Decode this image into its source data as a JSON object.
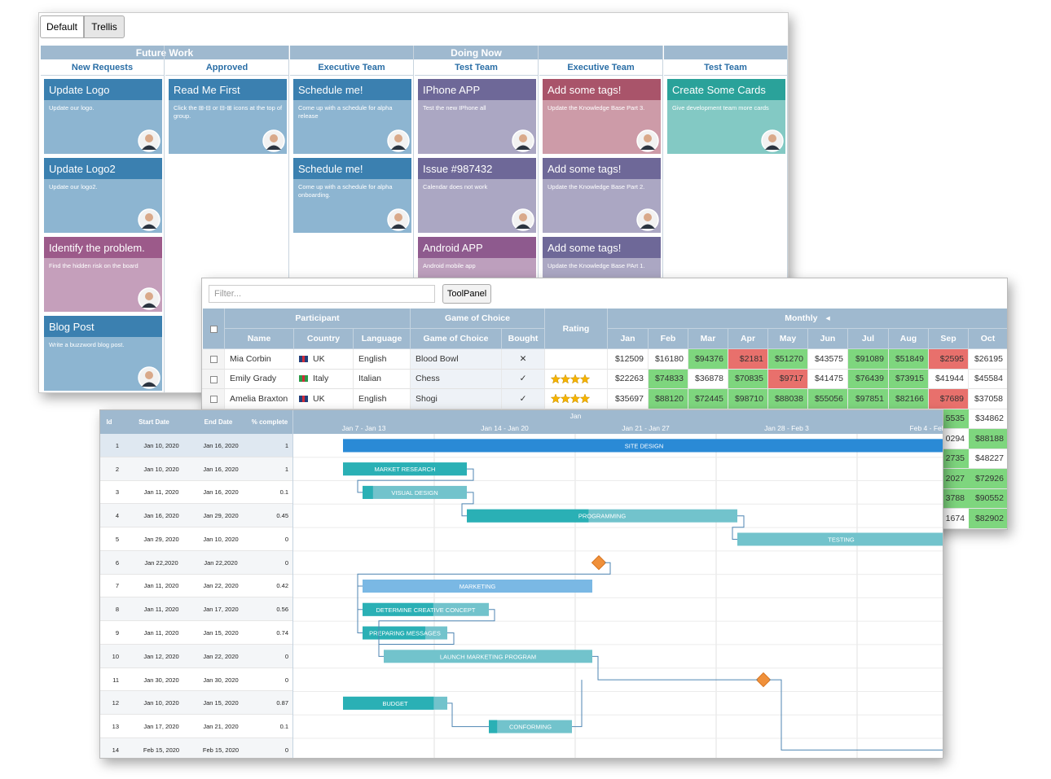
{
  "kanban": {
    "buttons": [
      "Default",
      "Trellis"
    ],
    "groups": [
      {
        "name": "Future Work",
        "columns": [
          {
            "name": "New Requests",
            "cards": [
              {
                "title": "Update Logo",
                "text": "Update our logo.",
                "color": "#3b80b0"
              },
              {
                "title": "Update Logo2",
                "text": "Update our logo2.",
                "color": "#3b80b0"
              },
              {
                "title": "Identify the problem.",
                "text": "Find the hidden risk on the board",
                "color": "#9c5a8a"
              },
              {
                "title": "Blog Post",
                "text": "Write a buzzword blog post.",
                "color": "#3b80b0"
              }
            ]
          },
          {
            "name": "Approved",
            "cards": [
              {
                "title": "Read Me First",
                "text": "Click the ⊞-⊟ or ⊟-⊞ icons at the top of group.",
                "color": "#3b80b0"
              }
            ]
          }
        ]
      },
      {
        "name": "Doing Now",
        "columns": [
          {
            "name": "Executive Team",
            "cards": [
              {
                "title": "Schedule me!",
                "text": "Come up with a schedule for alpha release",
                "color": "#3b80b0"
              },
              {
                "title": "Schedule me!",
                "text": "Come up with a schedule for alpha onboarding.",
                "color": "#3b80b0"
              }
            ]
          },
          {
            "name": "Test Team",
            "cards": [
              {
                "title": "IPhone APP",
                "text": "Test the new IPhone all",
                "color": "#6e6898"
              },
              {
                "title": "Issue #987432",
                "text": "Calendar does not work",
                "color": "#6e6898"
              },
              {
                "title": "Android APP",
                "text": "Android mobile app",
                "color": "#8e5a8e"
              }
            ]
          },
          {
            "name": "Executive Team",
            "cards": [
              {
                "title": "Add some tags!",
                "text": "Update the Knowledge Base Part 3.",
                "color": "#a9546a"
              },
              {
                "title": "Add some tags!",
                "text": "Update the Knowledge Base Part 2.",
                "color": "#6e6898"
              },
              {
                "title": "Add some tags!",
                "text": "Update the Knowledge Base PArt 1.",
                "color": "#6e6898"
              }
            ]
          }
        ]
      },
      {
        "columns": [
          {
            "name": "Test Team",
            "cards": [
              {
                "title": "Create Some Cards",
                "text": "Give development team more cards",
                "color": "#2aa29a"
              }
            ]
          }
        ]
      }
    ]
  },
  "grid": {
    "filter_placeholder": "Filter...",
    "button": "ToolPanel",
    "column_groups": [
      {
        "name": "Participant",
        "columns": [
          "Name",
          "Country",
          "Language"
        ]
      },
      {
        "name": "Game of Choice",
        "columns": [
          "Game of Choice",
          "Bought"
        ]
      },
      {
        "columns": [
          "Rating"
        ]
      },
      {
        "name": "Monthly",
        "icon": "◂",
        "columns": [
          "Jan",
          "Feb",
          "Mar",
          "Apr",
          "May",
          "Jun",
          "Jul",
          "Aug",
          "Sep",
          "Oct"
        ]
      }
    ],
    "high_color": "#7ed67e",
    "low_color": "#e8706c",
    "rows": [
      {
        "cells": [
          "Mia Corbin",
          "UK",
          "English",
          "Blood Bowl",
          "✕"
        ],
        "flag_colors": [
          "#23407a",
          "#d22b3a"
        ],
        "rating": null,
        "months": [
          "$12509",
          "$16180",
          "$94376",
          "$2181",
          "$51270",
          "$43575",
          "$91089",
          "$51849",
          "$2595",
          "$26195"
        ],
        "highlight": [
          null,
          null,
          "high",
          "low",
          "high",
          null,
          "high",
          "high",
          "low",
          null
        ]
      },
      {
        "cells": [
          "Emily Grady",
          "Italy",
          "Italian",
          "Chess",
          "✓"
        ],
        "flag_colors": [
          "#2a9a48",
          "#d22b3a"
        ],
        "rating": 4,
        "months": [
          "$22263",
          "$74833",
          "$36878",
          "$70835",
          "$9717",
          "$41475",
          "$76439",
          "$73915",
          "$41944",
          "$45584"
        ],
        "highlight": [
          null,
          "high",
          null,
          "high",
          "low",
          null,
          "high",
          "high",
          null,
          null
        ]
      },
      {
        "cells": [
          "Amelia Braxton",
          "UK",
          "English",
          "Shogi",
          "✓"
        ],
        "flag_colors": [
          "#23407a",
          "#d22b3a"
        ],
        "rating": 4,
        "months": [
          "$35697",
          "$88120",
          "$72445",
          "$98710",
          "$88038",
          "$55056",
          "$97851",
          "$82166",
          "$7689",
          "$37058"
        ],
        "highlight": [
          null,
          "high",
          "high",
          "high",
          "high",
          "high",
          "high",
          "high",
          "low",
          null
        ]
      }
    ],
    "overflow_rows": [
      {
        "cells": [
          "5535",
          "$34862"
        ],
        "highlight": [
          "high",
          null
        ]
      },
      {
        "cells": [
          "0294",
          "$88188"
        ],
        "highlight": [
          null,
          "high"
        ]
      },
      {
        "cells": [
          "2735",
          "$48227"
        ],
        "highlight": [
          "high",
          null
        ]
      },
      {
        "cells": [
          "2027",
          "$72926"
        ],
        "highlight": [
          "high",
          "high"
        ]
      },
      {
        "cells": [
          "3788",
          "$90552"
        ],
        "highlight": [
          "high",
          "high"
        ]
      },
      {
        "cells": [
          "1674",
          "$82902"
        ],
        "highlight": [
          null,
          "high"
        ]
      }
    ]
  },
  "gantt": {
    "columns": [
      "Id",
      "Start Date",
      "End Date",
      "% complete"
    ],
    "month": "Jan",
    "weeks": [
      "Jan 7 - Jan 13",
      "Jan 14 - Jan 20",
      "Jan 21 - Jan 27",
      "Jan 28 - Feb 3",
      "Feb 4 - Feb"
    ],
    "tasks": [
      {
        "id": 1,
        "start": "Jan 10, 2020",
        "end": "Jan 16, 2020",
        "complete": 1,
        "name": "SITE DESIGN",
        "color": "#2a8ad6",
        "progress_color": "#2a8ad6"
      },
      {
        "id": 2,
        "start": "Jan 10, 2020",
        "end": "Jan 16, 2020",
        "complete": 1,
        "name": "MARKET RESEARCH",
        "color": "#72c3cc",
        "progress_color": "#2ab0b5"
      },
      {
        "id": 3,
        "start": "Jan 11, 2020",
        "end": "Jan 16, 2020",
        "complete": 0.1,
        "name": "VISUAL DESIGN",
        "color": "#72c3cc",
        "progress_color": "#2ab0b5"
      },
      {
        "id": 4,
        "start": "Jan 16, 2020",
        "end": "Jan 29, 2020",
        "complete": 0.45,
        "name": "PROGRAMMING",
        "color": "#72c3cc",
        "progress_color": "#2ab0b5"
      },
      {
        "id": 5,
        "start": "Jan 29, 2020",
        "end": "Jan 10, 2020",
        "complete": 0,
        "name": "TESTING",
        "color": "#72c3cc",
        "progress_color": "#2ab0b5"
      },
      {
        "id": 6,
        "start": "Jan 22,2020",
        "end": "Jan 22,2020",
        "complete": 0,
        "color": "#f0903a"
      },
      {
        "id": 7,
        "start": "Jan 11, 2020",
        "end": "Jan 22, 2020",
        "complete": 0.42,
        "name": "MARKETING",
        "color": "#7ab8e4",
        "progress_color": "#7ab8e4"
      },
      {
        "id": 8,
        "start": "Jan 11, 2020",
        "end": "Jan 17, 2020",
        "complete": 0.56,
        "name": "DETERMINE CREATIVE CONCEPT",
        "color": "#72c3cc",
        "progress_color": "#2ab0b5"
      },
      {
        "id": 9,
        "start": "Jan 11, 2020",
        "end": "Jan 15, 2020",
        "complete": 0.74,
        "name": "PREPARING MESSAGES",
        "color": "#72c3cc",
        "progress_color": "#2ab0b5"
      },
      {
        "id": 10,
        "start": "Jan 12, 2020",
        "end": "Jan 22, 2020",
        "complete": 0,
        "name": "LAUNCH MARKETING PROGRAM",
        "color": "#72c3cc",
        "progress_color": "#2ab0b5"
      },
      {
        "id": 11,
        "start": "Jan 30, 2020",
        "end": "Jan 30, 2020",
        "complete": 0,
        "color": "#f0903a"
      },
      {
        "id": 12,
        "start": "Jan 10, 2020",
        "end": "Jan 15, 2020",
        "complete": 0.87,
        "name": "BUDGET",
        "color": "#72c3cc",
        "progress_color": "#2ab0b5"
      },
      {
        "id": 13,
        "start": "Jan 17, 2020",
        "end": "Jan 21, 2020",
        "complete": 0.1,
        "name": "CONFORMING",
        "color": "#72c3cc",
        "progress_color": "#2ab0b5"
      },
      {
        "id": 14,
        "start": "Feb 15, 2020",
        "end": "Feb 15, 2020",
        "complete": 0
      }
    ]
  }
}
